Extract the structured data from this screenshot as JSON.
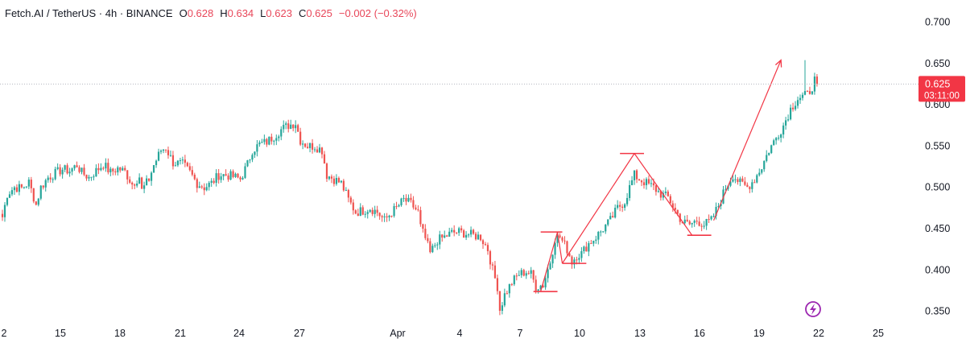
{
  "header": {
    "symbol": "Fetch.AI / TetherUS · 4h · BINANCE",
    "open_label": "O",
    "open": "0.628",
    "high_label": "H",
    "high": "0.634",
    "low_label": "L",
    "low": "0.623",
    "close_label": "C",
    "close": "0.625",
    "change": "−0.002 (−0.32%)"
  },
  "price_tag": {
    "price": "0.625",
    "countdown": "03:11:00",
    "color": "#f23645"
  },
  "colors": {
    "up": "#26a69a",
    "down": "#ef5350",
    "drawing": "#f23645",
    "text": "#131722"
  },
  "icons": {
    "replay": "lightning-icon"
  },
  "chart_data": {
    "type": "candlestick",
    "y_axis": {
      "ticks": [
        "0.700",
        "0.650",
        "0.600",
        "0.550",
        "0.500",
        "0.450",
        "0.400",
        "0.350"
      ],
      "ylim": [
        0.337,
        0.717
      ]
    },
    "x_axis": {
      "ticks": [
        "2",
        "15",
        "18",
        "21",
        "24",
        "27",
        "Apr",
        "4",
        "7",
        "10",
        "13",
        "16",
        "19",
        "22",
        "25"
      ]
    },
    "grid": false,
    "last_price": 0.625,
    "price_path": [
      [
        0,
        0.464
      ],
      [
        2,
        0.492
      ],
      [
        5,
        0.5
      ],
      [
        8,
        0.499
      ],
      [
        11,
        0.506
      ],
      [
        14,
        0.479
      ],
      [
        16,
        0.5
      ],
      [
        19,
        0.512
      ],
      [
        22,
        0.517
      ],
      [
        25,
        0.522
      ],
      [
        28,
        0.52
      ],
      [
        31,
        0.527
      ],
      [
        33,
        0.518
      ],
      [
        36,
        0.512
      ],
      [
        39,
        0.52
      ],
      [
        42,
        0.528
      ],
      [
        45,
        0.518
      ],
      [
        48,
        0.523
      ],
      [
        51,
        0.519
      ],
      [
        54,
        0.504
      ],
      [
        57,
        0.513
      ],
      [
        58,
        0.496
      ],
      [
        61,
        0.51
      ],
      [
        63,
        0.527
      ],
      [
        66,
        0.545
      ],
      [
        68,
        0.548
      ],
      [
        71,
        0.53
      ],
      [
        75,
        0.528
      ],
      [
        78,
        0.518
      ],
      [
        81,
        0.505
      ],
      [
        84,
        0.5
      ],
      [
        87,
        0.505
      ],
      [
        90,
        0.515
      ],
      [
        93,
        0.515
      ],
      [
        96,
        0.513
      ],
      [
        99,
        0.51
      ],
      [
        102,
        0.528
      ],
      [
        104,
        0.545
      ],
      [
        107,
        0.552
      ],
      [
        110,
        0.555
      ],
      [
        113,
        0.562
      ],
      [
        116,
        0.57
      ],
      [
        119,
        0.575
      ],
      [
        122,
        0.578
      ],
      [
        124,
        0.557
      ],
      [
        127,
        0.55
      ],
      [
        130,
        0.55
      ],
      [
        133,
        0.545
      ],
      [
        135,
        0.515
      ],
      [
        138,
        0.51
      ],
      [
        141,
        0.505
      ],
      [
        144,
        0.485
      ],
      [
        147,
        0.47
      ],
      [
        150,
        0.472
      ],
      [
        153,
        0.475
      ],
      [
        156,
        0.47
      ],
      [
        159,
        0.46
      ],
      [
        162,
        0.47
      ],
      [
        164,
        0.475
      ],
      [
        167,
        0.485
      ],
      [
        170,
        0.48
      ],
      [
        173,
        0.47
      ],
      [
        174,
        0.452
      ],
      [
        176,
        0.438
      ],
      [
        178,
        0.42
      ],
      [
        181,
        0.436
      ],
      [
        184,
        0.44
      ],
      [
        187,
        0.445
      ],
      [
        190,
        0.446
      ],
      [
        193,
        0.444
      ],
      [
        196,
        0.442
      ],
      [
        199,
        0.44
      ],
      [
        202,
        0.425
      ],
      [
        204,
        0.4
      ],
      [
        206,
        0.38
      ],
      [
        207,
        0.352
      ],
      [
        209,
        0.37
      ],
      [
        212,
        0.385
      ],
      [
        215,
        0.395
      ],
      [
        218,
        0.398
      ],
      [
        220,
        0.395
      ],
      [
        222,
        0.38
      ],
      [
        225,
        0.382
      ],
      [
        228,
        0.41
      ],
      [
        230,
        0.438
      ],
      [
        232,
        0.44
      ],
      [
        235,
        0.425
      ],
      [
        237,
        0.41
      ],
      [
        239,
        0.418
      ],
      [
        241,
        0.42
      ],
      [
        244,
        0.432
      ],
      [
        247,
        0.44
      ],
      [
        250,
        0.45
      ],
      [
        253,
        0.46
      ],
      [
        256,
        0.475
      ],
      [
        259,
        0.483
      ],
      [
        261,
        0.5
      ],
      [
        263,
        0.515
      ],
      [
        265,
        0.51
      ],
      [
        268,
        0.505
      ],
      [
        271,
        0.5
      ],
      [
        274,
        0.492
      ],
      [
        277,
        0.488
      ],
      [
        280,
        0.472
      ],
      [
        283,
        0.458
      ],
      [
        286,
        0.455
      ],
      [
        289,
        0.46
      ],
      [
        292,
        0.455
      ],
      [
        295,
        0.46
      ],
      [
        298,
        0.478
      ],
      [
        301,
        0.5
      ],
      [
        304,
        0.515
      ],
      [
        307,
        0.505
      ],
      [
        310,
        0.5
      ],
      [
        313,
        0.51
      ],
      [
        316,
        0.525
      ],
      [
        319,
        0.545
      ],
      [
        322,
        0.56
      ],
      [
        325,
        0.575
      ],
      [
        328,
        0.595
      ],
      [
        331,
        0.608
      ],
      [
        333,
        0.61
      ],
      [
        335,
        0.612
      ],
      [
        337,
        0.622
      ],
      [
        338,
        0.63
      ],
      [
        339,
        0.625
      ]
    ],
    "spikes": [
      [
        334,
        0.654
      ]
    ],
    "drawings": {
      "hlines": [
        [
          221,
          231,
          0.374
        ],
        [
          224,
          233,
          0.446
        ],
        [
          233,
          243,
          0.408
        ],
        [
          257,
          267,
          0.541
        ],
        [
          285,
          295,
          0.442
        ]
      ],
      "lines": [
        [
          224,
          0.374
        ],
        [
          231,
          0.446
        ],
        [
          233,
          0.408
        ],
        [
          263,
          0.541
        ],
        [
          287,
          0.442
        ]
      ],
      "arrow": [
        [
          296,
          0.46
        ],
        [
          324,
          0.654
        ]
      ]
    }
  }
}
